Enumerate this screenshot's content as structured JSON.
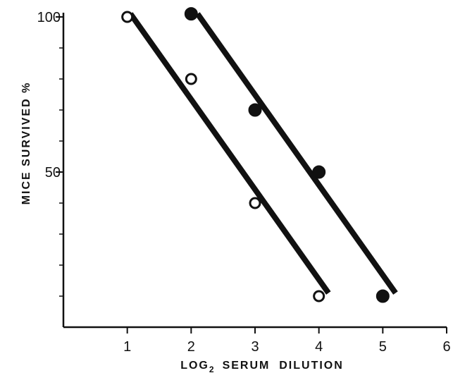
{
  "chart_data": {
    "type": "scatter",
    "title": "",
    "xlabel_prefix": "LOG",
    "xlabel_subscript": "2",
    "xlabel_rest": "SERUM  DILUTION",
    "ylabel": "MICE  SURVIVED  %",
    "xlim": [
      0,
      6
    ],
    "ylim": [
      0,
      100
    ],
    "x_ticks": [
      1,
      2,
      3,
      4,
      5,
      6
    ],
    "y_tick_labels": [
      {
        "value": 100,
        "label": "100"
      },
      {
        "value": 50,
        "label": "50"
      }
    ],
    "y_minor_ticks": [
      10,
      20,
      30,
      40,
      60,
      70,
      80,
      90
    ],
    "grid": false,
    "series": [
      {
        "marker": "open-circle",
        "points": [
          [
            1,
            100
          ],
          [
            2,
            80
          ],
          [
            3,
            40
          ],
          [
            4,
            10
          ]
        ],
        "fit_line": [
          [
            1.05,
            101
          ],
          [
            4.15,
            11
          ]
        ]
      },
      {
        "marker": "filled-circle",
        "points": [
          [
            2,
            101
          ],
          [
            3,
            70
          ],
          [
            4,
            50
          ],
          [
            5,
            10
          ]
        ],
        "fit_line": [
          [
            2.1,
            101
          ],
          [
            5.2,
            11
          ]
        ]
      }
    ],
    "colors": {
      "ink": "#111111",
      "background": "#ffffff"
    }
  }
}
